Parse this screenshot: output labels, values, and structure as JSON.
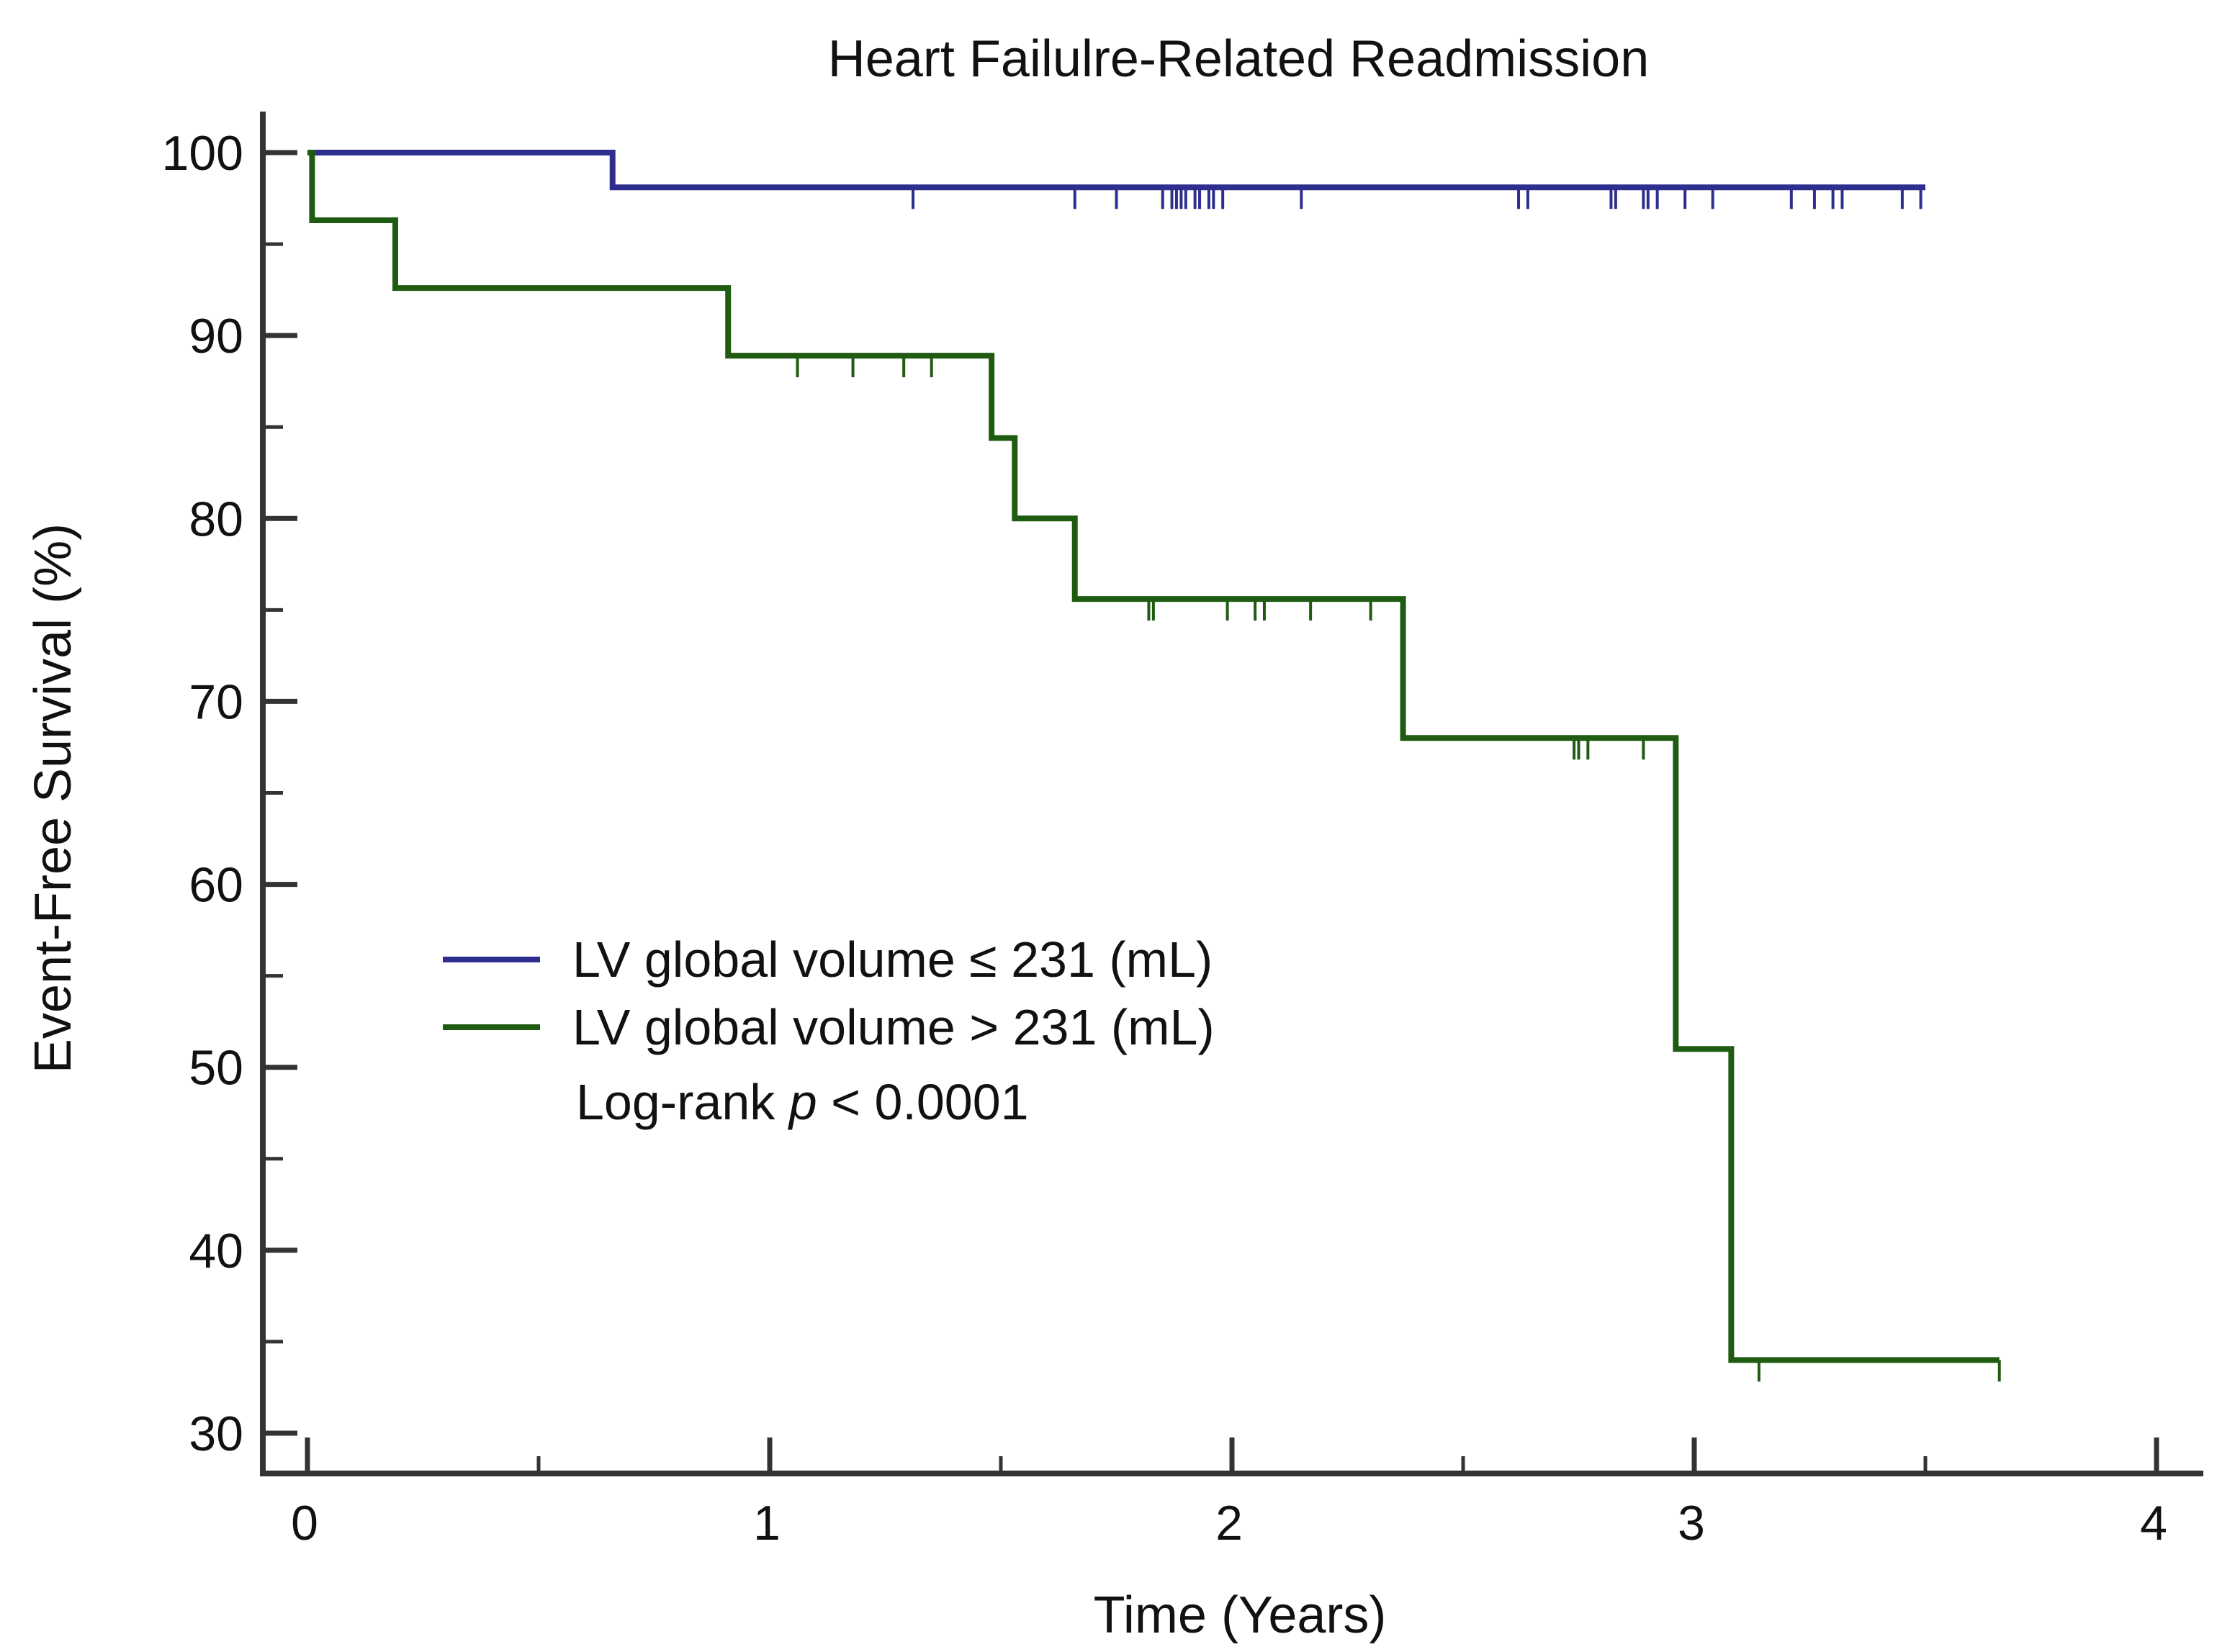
{
  "chart_data": {
    "type": "line",
    "subtype": "kaplan-meier",
    "title": "Heart Failulre-Related Readmission",
    "xlabel": "Time (Years)",
    "ylabel": "Event-Free Survival (%)",
    "xlim": [
      0,
      4
    ],
    "ylim": [
      30,
      100
    ],
    "xticks": [
      0,
      1,
      2,
      3,
      4
    ],
    "xtick_labels": [
      "0",
      "1",
      "2",
      "3",
      "4"
    ],
    "xminor": [
      0.5,
      1.5,
      2.5,
      3.5
    ],
    "yticks": [
      100,
      90,
      80,
      70,
      60,
      50,
      40,
      30
    ],
    "ytick_labels": [
      "100",
      "90",
      "80",
      "70",
      "60",
      "50",
      "40",
      "30"
    ],
    "yminor": [
      95,
      85,
      75,
      65,
      55,
      45,
      35
    ],
    "grid": false,
    "legend_position": "center-left",
    "series": [
      {
        "name": "LV global volume ≤ 231 (mL)",
        "color": "#2e2e8f",
        "steps": [
          [
            0,
            100
          ],
          [
            0.66,
            98.1
          ],
          [
            3.5,
            98.1
          ]
        ],
        "censored": [
          1.31,
          1.66,
          1.75,
          1.85,
          1.87,
          1.88,
          1.89,
          1.9,
          1.92,
          1.93,
          1.95,
          1.96,
          1.98,
          2.15,
          2.62,
          2.64,
          2.82,
          2.83,
          2.89,
          2.9,
          2.92,
          2.98,
          3.04,
          3.21,
          3.26,
          3.3,
          3.32,
          3.45,
          3.49
        ]
      },
      {
        "name": "LV global volume > 231 (mL)",
        "color": "#1f5c12",
        "steps": [
          [
            0,
            100
          ],
          [
            0.01,
            96.3
          ],
          [
            0.19,
            92.6
          ],
          [
            0.91,
            88.9
          ],
          [
            1.48,
            84.4
          ],
          [
            1.53,
            80.0
          ],
          [
            1.66,
            75.6
          ],
          [
            2.37,
            68.0
          ],
          [
            2.96,
            51.0
          ],
          [
            3.08,
            34.0
          ],
          [
            3.66,
            34.0
          ]
        ],
        "censored": [
          1.06,
          1.18,
          1.29,
          1.35,
          1.82,
          1.83,
          1.99,
          2.05,
          2.07,
          2.17,
          2.3,
          2.74,
          2.75,
          2.77,
          2.89,
          3.14,
          3.66
        ]
      }
    ],
    "annotation": {
      "prefix": "Log-rank ",
      "p_symbol": "p",
      "suffix": " < 0.0001"
    }
  }
}
